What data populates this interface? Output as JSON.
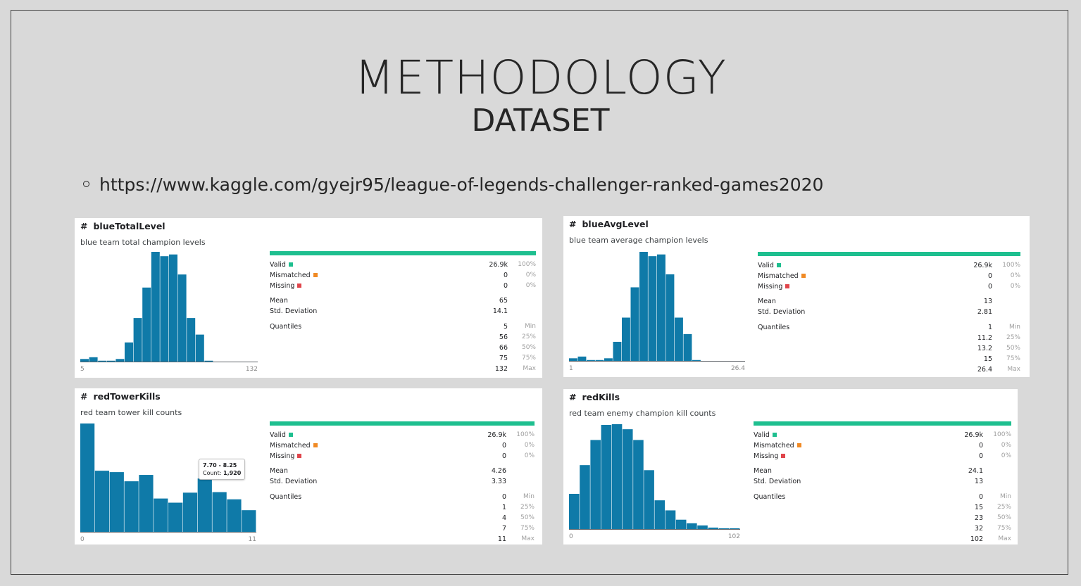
{
  "slide": {
    "title": "METHODOLOGY",
    "subtitle": "DATASET",
    "bullet": "https://www.kaggle.com/gyejr95/league-of-legends-challenger-ranked-games2020"
  },
  "colors": {
    "bar": "#0f7aa8",
    "valid": "#1ebf8f",
    "mismatched": "#f08a24",
    "missing": "#e0454b"
  },
  "labels": {
    "valid": "Valid",
    "mismatched": "Mismatched",
    "missing": "Missing",
    "mean": "Mean",
    "std": "Std. Deviation",
    "quantiles": "Quantiles",
    "min": "Min",
    "p25": "25%",
    "p50": "50%",
    "p75": "75%",
    "max": "Max"
  },
  "cards": [
    {
      "name": "blueTotalLevel",
      "desc": "blue team total champion levels",
      "axis_min": "5",
      "axis_max": "132",
      "valid": "26.9k",
      "valid_pct": "100%",
      "mismatched": "0",
      "mismatched_pct": "0%",
      "missing": "0",
      "missing_pct": "0%",
      "mean": "65",
      "std": "14.1",
      "q_min": "5",
      "q25": "56",
      "q50": "66",
      "q75": "75",
      "q_max": "132",
      "chart_data": {
        "type": "bar",
        "values": [
          3,
          5,
          1,
          1,
          3,
          22,
          50,
          85,
          126,
          121,
          123,
          100,
          50,
          31,
          1,
          0,
          0,
          0,
          0,
          0
        ]
      }
    },
    {
      "name": "blueAvgLevel",
      "desc": "blue team average champion levels",
      "axis_min": "1",
      "axis_max": "26.4",
      "valid": "26.9k",
      "valid_pct": "100%",
      "mismatched": "0",
      "mismatched_pct": "0%",
      "missing": "0",
      "missing_pct": "0%",
      "mean": "13",
      "std": "2.81",
      "q_min": "1",
      "q25": "11.2",
      "q50": "13.2",
      "q75": "15",
      "q_max": "26.4",
      "chart_data": {
        "type": "bar",
        "values": [
          3,
          5,
          1,
          1,
          3,
          22,
          50,
          85,
          126,
          121,
          123,
          100,
          50,
          31,
          1,
          0,
          0,
          0,
          0,
          0
        ]
      }
    },
    {
      "name": "redTowerKills",
      "desc": "red team tower kill counts",
      "axis_min": "0",
      "axis_max": "11",
      "valid": "26.9k",
      "valid_pct": "100%",
      "mismatched": "0",
      "mismatched_pct": "0%",
      "missing": "0",
      "missing_pct": "0%",
      "mean": "4.26",
      "std": "3.33",
      "q_min": "0",
      "q25": "1",
      "q50": "4",
      "q75": "7",
      "q_max": "11",
      "tooltip": {
        "range": "7.70 - 8.25",
        "count_label": "Count: ",
        "count": "1,920"
      },
      "chart_data": {
        "type": "bar",
        "values": [
          3900,
          2200,
          2150,
          1820,
          2050,
          1200,
          1050,
          1410,
          1920,
          1430,
          1170,
          780
        ]
      }
    },
    {
      "name": "redKills",
      "desc": "red team enemy champion kill counts",
      "axis_min": "0",
      "axis_max": "102",
      "valid": "26.9k",
      "valid_pct": "100%",
      "mismatched": "0",
      "mismatched_pct": "0%",
      "missing": "0",
      "missing_pct": "0%",
      "mean": "24.1",
      "std": "13",
      "q_min": "0",
      "q25": "15",
      "q50": "23",
      "q75": "32",
      "q_max": "102",
      "chart_data": {
        "type": "bar",
        "values": [
          49,
          89,
          124,
          145,
          146,
          139,
          124,
          82,
          40,
          26,
          13,
          8,
          5,
          2,
          1,
          1
        ]
      }
    }
  ]
}
